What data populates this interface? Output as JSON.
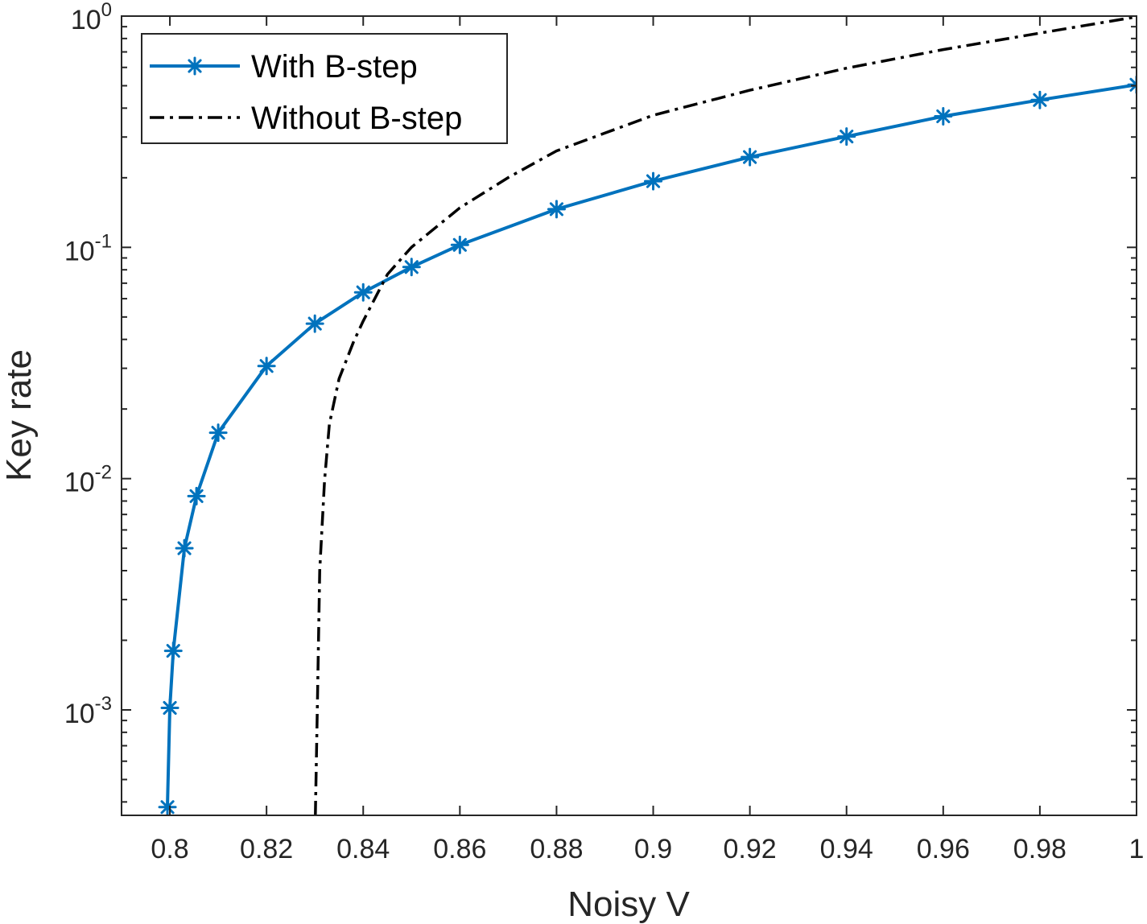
{
  "chart_data": {
    "type": "line",
    "xlabel": "Noisy V",
    "ylabel": "Key rate",
    "xlim": [
      0.79,
      1.0
    ],
    "ylim": [
      0.00035,
      1.0
    ],
    "yscale": "log",
    "grid": false,
    "legend_position": "top-left",
    "x_ticks": [
      0.8,
      0.82,
      0.84,
      0.86,
      0.88,
      0.9,
      0.92,
      0.94,
      0.96,
      0.98,
      1
    ],
    "x_tick_labels": [
      "0.8",
      "0.82",
      "0.84",
      "0.86",
      "0.88",
      "0.9",
      "0.92",
      "0.94",
      "0.96",
      "0.98",
      "1"
    ],
    "y_ticks": [
      {
        "value": 0.001,
        "base": "10",
        "exp": "-3"
      },
      {
        "value": 0.01,
        "base": "10",
        "exp": "-2"
      },
      {
        "value": 0.1,
        "base": "10",
        "exp": "-1"
      },
      {
        "value": 1,
        "base": "10",
        "exp": "0"
      }
    ],
    "series": [
      {
        "name": "With B-step",
        "color": "#0072BD",
        "style": "solid",
        "marker": "asterisk",
        "x": [
          0.7995,
          0.8,
          0.8007,
          0.803,
          0.8055,
          0.81,
          0.82,
          0.83,
          0.84,
          0.85,
          0.86,
          0.88,
          0.9,
          0.92,
          0.94,
          0.96,
          0.98,
          1.0
        ],
        "y": [
          0.00038,
          0.00102,
          0.0018,
          0.005,
          0.0084,
          0.0158,
          0.0307,
          0.0468,
          0.0639,
          0.0822,
          0.1025,
          0.1463,
          0.1933,
          0.2457,
          0.3015,
          0.3688,
          0.4337,
          0.5048
        ]
      },
      {
        "name": "Without B-step",
        "color": "#000000",
        "style": "dashdot",
        "marker": "none",
        "x": [
          0.8301,
          0.8305,
          0.831,
          0.832,
          0.833,
          0.835,
          0.838,
          0.84,
          0.845,
          0.85,
          0.86,
          0.87,
          0.88,
          0.9,
          0.92,
          0.94,
          0.96,
          0.98,
          1.0
        ],
        "y": [
          0.00035,
          0.001,
          0.004,
          0.0098,
          0.0172,
          0.027,
          0.039,
          0.048,
          0.0764,
          0.1002,
          0.1483,
          0.2004,
          0.2613,
          0.3726,
          0.4779,
          0.5952,
          0.7167,
          0.8442,
          0.993
        ]
      }
    ]
  }
}
